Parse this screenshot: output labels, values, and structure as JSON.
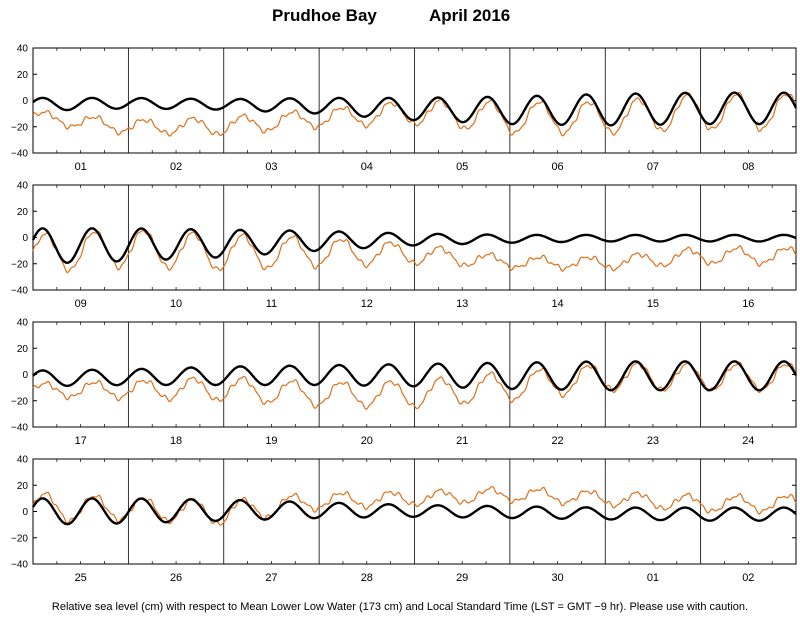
{
  "header": {
    "station": "Prudhoe Bay",
    "period": "April   2016"
  },
  "caption": "Relative sea level (cm) with respect to Mean Lower Low Water (173 cm) and Local Standard Time (LST = GMT −9 hr). Please use with caution.",
  "colors": {
    "predicted": "#000000",
    "observed": "#e0701a",
    "axis": "#000000"
  },
  "chart_data": [
    {
      "type": "line",
      "days": [
        "01",
        "02",
        "03",
        "04",
        "05",
        "06",
        "07",
        "08"
      ],
      "ylim": [
        -40,
        40
      ],
      "yticks": [
        40,
        20,
        0,
        -20,
        -40
      ],
      "series": [
        {
          "key": "predicted",
          "daily_high": [
            2,
            2,
            1,
            2,
            2,
            3,
            5,
            6
          ],
          "daily_low": [
            -8,
            -6,
            -7,
            -10,
            -15,
            -18,
            -19,
            -18
          ]
        },
        {
          "key": "observed",
          "daily_high": [
            -8,
            -15,
            -13,
            -7,
            0,
            -1,
            -1,
            5
          ],
          "daily_low": [
            -17,
            -25,
            -26,
            -20,
            -18,
            -25,
            -25,
            -22
          ]
        }
      ]
    },
    {
      "type": "line",
      "days": [
        "09",
        "10",
        "11",
        "12",
        "13",
        "14",
        "15",
        "16"
      ],
      "ylim": [
        -40,
        40
      ],
      "yticks": [
        40,
        20,
        0,
        -20,
        -40
      ],
      "series": [
        {
          "key": "predicted",
          "daily_high": [
            7,
            7,
            6,
            5,
            3,
            2,
            2,
            2
          ],
          "daily_low": [
            -20,
            -18,
            -15,
            -10,
            -6,
            -4,
            -3,
            -3
          ]
        },
        {
          "key": "observed",
          "daily_high": [
            2,
            6,
            2,
            0,
            -5,
            -15,
            -15,
            -8
          ],
          "daily_low": [
            -27,
            -22,
            -25,
            -22,
            -20,
            -23,
            -24,
            -20
          ]
        }
      ]
    },
    {
      "type": "line",
      "days": [
        "17",
        "18",
        "19",
        "20",
        "21",
        "22",
        "23",
        "24"
      ],
      "ylim": [
        -40,
        40
      ],
      "yticks": [
        40,
        20,
        0,
        -20,
        -40
      ],
      "series": [
        {
          "key": "predicted",
          "daily_high": [
            3,
            4,
            6,
            7,
            8,
            9,
            10,
            10
          ],
          "daily_low": [
            -9,
            -8,
            -8,
            -8,
            -9,
            -11,
            -12,
            -12
          ]
        },
        {
          "key": "observed",
          "daily_high": [
            -7,
            -5,
            -2,
            -6,
            -5,
            2,
            8,
            8
          ],
          "daily_low": [
            -17,
            -18,
            -20,
            -24,
            -25,
            -20,
            -12,
            -12
          ]
        }
      ]
    },
    {
      "type": "line",
      "days": [
        "25",
        "26",
        "27",
        "28",
        "29",
        "30",
        "01",
        "02"
      ],
      "ylim": [
        -40,
        40
      ],
      "yticks": [
        40,
        20,
        0,
        -20,
        -40
      ],
      "series": [
        {
          "key": "predicted",
          "daily_high": [
            10,
            10,
            9,
            7,
            5,
            4,
            3,
            3
          ],
          "daily_low": [
            -10,
            -9,
            -7,
            -5,
            -4,
            -5,
            -6,
            -7
          ]
        },
        {
          "key": "observed",
          "daily_high": [
            14,
            11,
            8,
            14,
            15,
            18,
            15,
            12
          ],
          "daily_low": [
            -8,
            -6,
            -10,
            2,
            5,
            8,
            5,
            0
          ]
        }
      ]
    }
  ]
}
